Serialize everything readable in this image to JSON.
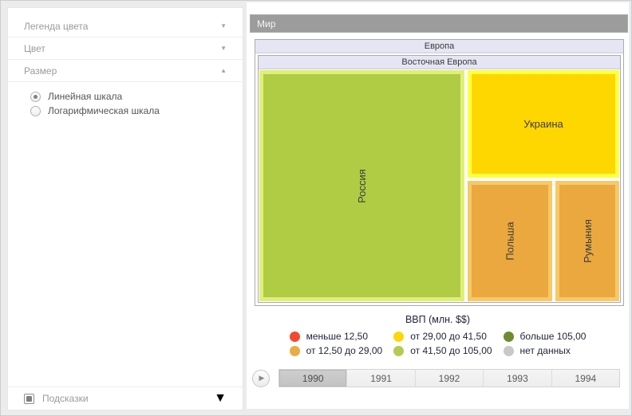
{
  "sidebar": {
    "panels": [
      {
        "label": "Легенда цвета",
        "arrow": "▼",
        "state": "collapsed"
      },
      {
        "label": "Цвет",
        "arrow": "▼",
        "state": "collapsed"
      },
      {
        "label": "Размер",
        "arrow": "▲",
        "state": "expanded"
      }
    ],
    "size_scale_options": [
      {
        "label": "Линейная шкала",
        "selected": true
      },
      {
        "label": "Логарифмическая шкала",
        "selected": false
      }
    ],
    "tooltips_panel": {
      "label": "Подсказки",
      "arrow": "▼",
      "checked": true
    }
  },
  "treemap": {
    "root": "Мир",
    "region": "Европа",
    "subregion": "Восточная Европа",
    "nodes": {
      "russia": {
        "name": "Россия",
        "fill": "#b0cc45",
        "border": "#e0ef78"
      },
      "ukraine": {
        "name": "Украина",
        "fill": "#ffd700",
        "border": "#fdff42"
      },
      "poland": {
        "name": "Польша",
        "fill": "#eaa83f",
        "border": "#f7c967"
      },
      "romania": {
        "name": "Румыния",
        "fill": "#eaa83f",
        "border": "#f7c967"
      }
    }
  },
  "legend": {
    "title": "ВВП (млн. $$)",
    "items": [
      {
        "label": "меньше 12,50",
        "color": "#f24a30"
      },
      {
        "label": "от 29,00 до 41,50",
        "color": "#ffd60d"
      },
      {
        "label": "больше 105,00",
        "color": "#6e8b2f"
      },
      {
        "label": "от 12,50 до 29,00",
        "color": "#e9ad42"
      },
      {
        "label": "от 41,50 до 105,00",
        "color": "#b2cc52"
      },
      {
        "label": "нет данных",
        "color": "#c8c8c8"
      }
    ]
  },
  "timeline": {
    "play_glyph": "▶",
    "years": [
      {
        "label": "1990",
        "selected": true
      },
      {
        "label": "1991",
        "selected": false
      },
      {
        "label": "1992",
        "selected": false
      },
      {
        "label": "1993",
        "selected": false
      },
      {
        "label": "1994",
        "selected": false
      }
    ]
  },
  "chart_data": {
    "type": "treemap",
    "title": "ВВП (млн. $$)",
    "selected_year": "1990",
    "hierarchy": [
      "Мир",
      "Европа",
      "Восточная Европа"
    ],
    "nodes": [
      {
        "name": "Россия",
        "color_bin": "от 41,50 до 105,00",
        "area_fraction": 0.57
      },
      {
        "name": "Украина",
        "color_bin": "от 29,00 до 41,50",
        "area_fraction": 0.19
      },
      {
        "name": "Польша",
        "color_bin": "от 12,50 до 29,00",
        "area_fraction": 0.12
      },
      {
        "name": "Румыния",
        "color_bin": "от 12,50 до 29,00",
        "area_fraction": 0.09
      }
    ],
    "legend_bins": [
      "меньше 12,50",
      "от 12,50 до 29,00",
      "от 29,00 до 41,50",
      "от 41,50 до 105,00",
      "больше 105,00",
      "нет данных"
    ],
    "legend_position": "bottom"
  }
}
